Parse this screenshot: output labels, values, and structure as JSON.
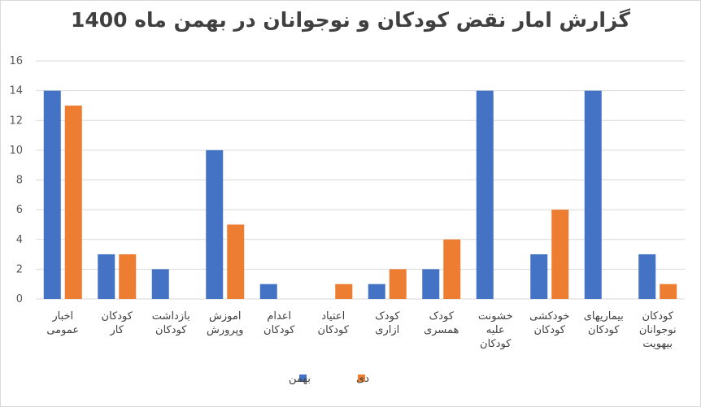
{
  "chart_data": {
    "type": "bar",
    "title": "گزارش امار نقض کودکان و نوجوانان در بهمن ماه 1400",
    "xlabel": "",
    "ylabel": "",
    "ylim": [
      0,
      16
    ],
    "yticks": [
      0,
      2,
      4,
      6,
      8,
      10,
      12,
      14,
      16
    ],
    "grid": true,
    "legend_position": "bottom",
    "categories": [
      [
        "اخبار",
        "عمومی"
      ],
      [
        "کودکان",
        "کار"
      ],
      [
        "بازداشت",
        "کودکان"
      ],
      [
        "اموزش",
        "وپرورش"
      ],
      [
        "اعدام",
        "کودکان"
      ],
      [
        "اعتیاد",
        "کودکان"
      ],
      [
        "کودک",
        "ازاری"
      ],
      [
        "کودک",
        "همسری"
      ],
      [
        "خشونت",
        "علیه",
        "کودکان"
      ],
      [
        "خودکشی",
        "کودکان"
      ],
      [
        "بیماریهای",
        "کودکان"
      ],
      [
        "کودکان",
        "نوجوانان",
        "بیهویت"
      ]
    ],
    "series": [
      {
        "name": "بهمن",
        "color": "#4472c4",
        "values": [
          14,
          3,
          2,
          10,
          1,
          0,
          1,
          2,
          14,
          3,
          14,
          3
        ]
      },
      {
        "name": "دی",
        "color": "#ed7d31",
        "values": [
          13,
          3,
          0,
          5,
          0,
          1,
          2,
          4,
          0,
          6,
          0,
          1
        ]
      }
    ]
  }
}
